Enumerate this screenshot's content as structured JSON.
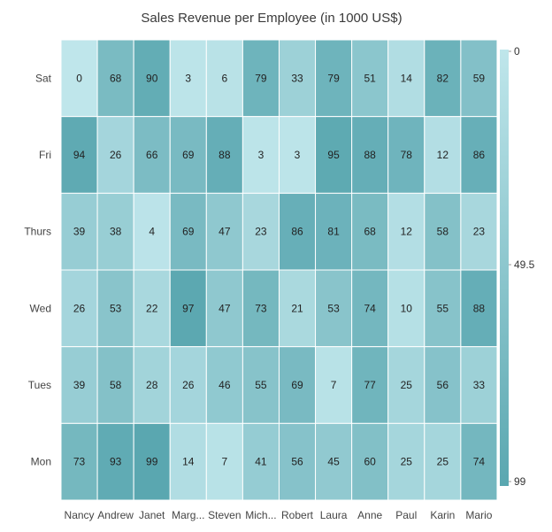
{
  "chart_data": {
    "type": "heatmap",
    "title": "Sales Revenue per Employee (in 1000 US$)",
    "x_categories": [
      "Nancy",
      "Andrew",
      "Janet",
      "Marg...",
      "Steven",
      "Mich...",
      "Robert",
      "Laura",
      "Anne",
      "Paul",
      "Karin",
      "Mario"
    ],
    "y_categories": [
      "Sat",
      "Fri",
      "Thurs",
      "Wed",
      "Tues",
      "Mon"
    ],
    "values": [
      [
        0,
        68,
        90,
        3,
        6,
        79,
        33,
        79,
        51,
        14,
        82,
        59
      ],
      [
        94,
        26,
        66,
        69,
        88,
        3,
        3,
        95,
        88,
        78,
        12,
        86
      ],
      [
        39,
        38,
        4,
        69,
        47,
        23,
        86,
        81,
        68,
        12,
        58,
        23
      ],
      [
        26,
        53,
        22,
        97,
        47,
        73,
        21,
        53,
        74,
        10,
        55,
        88
      ],
      [
        39,
        58,
        28,
        26,
        46,
        55,
        69,
        7,
        77,
        25,
        56,
        33
      ],
      [
        73,
        93,
        99,
        14,
        7,
        41,
        56,
        45,
        60,
        25,
        25,
        74
      ]
    ],
    "color_range": {
      "min": 0,
      "max": 99,
      "min_color": "#bfe6eb",
      "max_color": "#5aa7b0"
    },
    "legend": {
      "labels": [
        "0",
        "49.5",
        "99"
      ],
      "position": "right"
    }
  }
}
